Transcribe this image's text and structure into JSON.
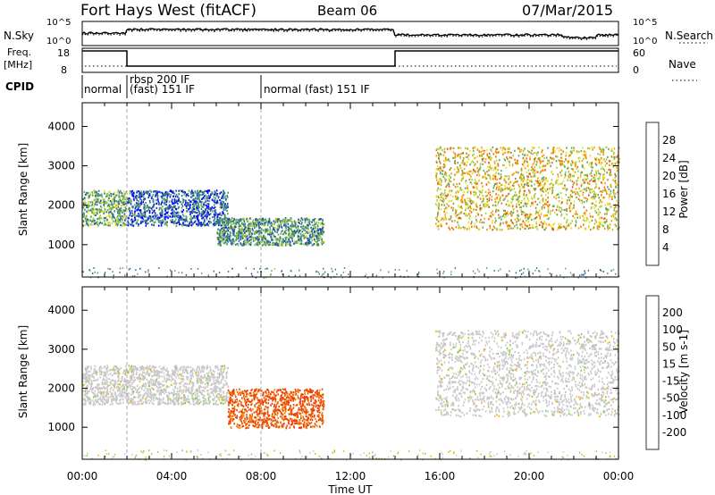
{
  "header": {
    "station": "Fort Hays West (fitACF)",
    "beam": "Beam 06",
    "date": "07/Mar/2015"
  },
  "left_labels": {
    "nsky": "N.Sky",
    "freq": "Freq.",
    "freq_unit": "[MHz]",
    "cpid": "CPID"
  },
  "right_labels": {
    "nsearch": "N.Search",
    "nave": "Nave"
  },
  "noise_panel": {
    "left_ticks": [
      "10^5",
      "10^0"
    ],
    "right_ticks": [
      "10^5",
      "10^0"
    ]
  },
  "freq_panel": {
    "left_ticks": [
      "18",
      "8"
    ],
    "right_ticks": [
      "60",
      "0"
    ]
  },
  "cpid_panel": {
    "segments": [
      {
        "label": "normal",
        "start_hour": 0
      },
      {
        "label": "rbsp 200 IF",
        "start_hour": 2
      },
      {
        "label": "(fast) 151 IF",
        "start_hour": 2
      },
      {
        "label": "normal (fast) 151 IF",
        "start_hour": 8
      }
    ]
  },
  "chart_data": [
    {
      "type": "heatmap",
      "title": "",
      "xlabel": "Time UT",
      "ylabel": "Slant Range [km]",
      "xlim": [
        0,
        24
      ],
      "ylim": [
        180,
        4600
      ],
      "x_ticks": [
        "00:00",
        "04:00",
        "08:00",
        "12:00",
        "16:00",
        "20:00",
        "00:00"
      ],
      "y_ticks": [
        "1000",
        "2000",
        "3000",
        "4000"
      ],
      "colorbar": {
        "label": "Power [dB]",
        "ticks": [
          "4",
          "8",
          "12",
          "16",
          "20",
          "24",
          "28"
        ],
        "range": [
          0,
          30
        ],
        "colors": [
          "#0000ff",
          "#1f3fbf",
          "#2f6f8f",
          "#3f8f6f",
          "#5fa85f",
          "#9fcf3f",
          "#e8e020",
          "#f0a000",
          "#f07000",
          "#f04000",
          "#ff0000"
        ]
      },
      "bands": [
        {
          "t0": 0.0,
          "t1": 2.0,
          "r0": 1500,
          "r1": 2400,
          "level": 12
        },
        {
          "t0": 2.0,
          "t1": 6.5,
          "r0": 1500,
          "r1": 2400,
          "level": 6
        },
        {
          "t0": 6.0,
          "t1": 10.8,
          "r0": 1000,
          "r1": 1700,
          "level": 10
        },
        {
          "t0": 15.8,
          "t1": 24.0,
          "r0": 1400,
          "r1": 3500,
          "level": 18
        }
      ]
    },
    {
      "type": "heatmap",
      "title": "",
      "xlabel": "Time UT",
      "ylabel": "Slant Range [km]",
      "xlim": [
        0,
        24
      ],
      "ylim": [
        180,
        4600
      ],
      "x_ticks": [
        "00:00",
        "04:00",
        "08:00",
        "12:00",
        "16:00",
        "20:00",
        "00:00"
      ],
      "y_ticks": [
        "1000",
        "2000",
        "3000",
        "4000"
      ],
      "colorbar": {
        "label": "Velocity [m s-1]",
        "ticks": [
          "200",
          "100",
          "50",
          "15",
          "-15",
          "-50",
          "-100",
          "-200"
        ],
        "range": [
          -250,
          250
        ],
        "colors": [
          "#ff0000",
          "#f04000",
          "#f08000",
          "#f0b000",
          "#c8c8c8",
          "#80d040",
          "#3fa040",
          "#2060a0",
          "#0000d0"
        ]
      },
      "bands": [
        {
          "t0": 0.0,
          "t1": 6.5,
          "r0": 1600,
          "r1": 2600,
          "level": 0
        },
        {
          "t0": 6.5,
          "t1": 10.8,
          "r0": 1000,
          "r1": 2000,
          "level": -150
        },
        {
          "t0": 15.8,
          "t1": 24.0,
          "r0": 1300,
          "r1": 3500,
          "level": 0
        }
      ]
    }
  ]
}
